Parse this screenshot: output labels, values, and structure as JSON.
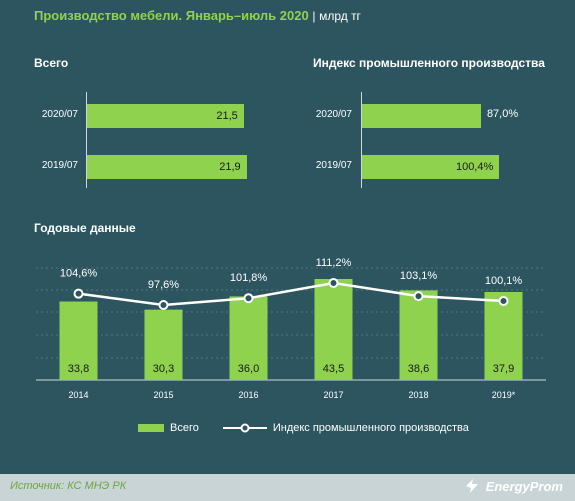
{
  "header": {
    "title": "Производство мебели. Январь–июль 2020",
    "separator": "|",
    "unit": "млрд тг"
  },
  "sections": {
    "total": "Всего",
    "index": "Индекс промышленного производства",
    "annual": "Годовые данные"
  },
  "footer": {
    "source": "Источник: КС МНЭ РК",
    "brand": "EnergyProm"
  },
  "colors": {
    "background": "#2d5560",
    "bar": "#8fd24e",
    "line": "#ffffff",
    "title": "#8fd24e"
  },
  "chart_data": [
    {
      "type": "bar",
      "orientation": "horizontal",
      "title": "Всего",
      "categories": [
        "2020/07",
        "2019/07"
      ],
      "values": [
        21.5,
        21.9
      ],
      "labels": [
        "21,5",
        "21,9"
      ]
    },
    {
      "type": "bar",
      "orientation": "horizontal",
      "title": "Индекс промышленного производства",
      "categories": [
        "2020/07",
        "2019/07"
      ],
      "values": [
        87.0,
        100.4
      ],
      "labels": [
        "87,0%",
        "100,4%"
      ]
    },
    {
      "type": "bar",
      "title": "Годовые данные",
      "categories": [
        "2014",
        "2015",
        "2016",
        "2017",
        "2018",
        "2019*"
      ],
      "series": [
        {
          "name": "Всего",
          "kind": "bar",
          "values": [
            33.8,
            30.3,
            36.0,
            43.5,
            38.6,
            37.9
          ],
          "labels": [
            "33,8",
            "30,3",
            "36,0",
            "43,5",
            "38,6",
            "37,9"
          ]
        },
        {
          "name": "Индекс промышленного производства",
          "kind": "line",
          "values": [
            104.6,
            97.6,
            101.8,
            111.2,
            103.1,
            100.1
          ],
          "labels": [
            "104,6%",
            "97,6%",
            "101,8%",
            "111,2%",
            "103,1%",
            "100,1%"
          ]
        }
      ],
      "grid": true,
      "legend": "bottom"
    }
  ]
}
